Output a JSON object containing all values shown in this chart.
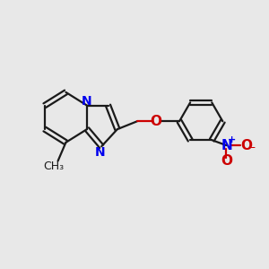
{
  "bg_color": "#e8e8e8",
  "bond_color": "#1a1a1a",
  "nitrogen_color": "#0000ee",
  "oxygen_color": "#cc0000",
  "line_width": 1.6,
  "font_size": 10,
  "figsize": [
    3.0,
    3.0
  ],
  "dpi": 100,
  "xlim": [
    0,
    10
  ],
  "ylim": [
    0,
    10
  ]
}
